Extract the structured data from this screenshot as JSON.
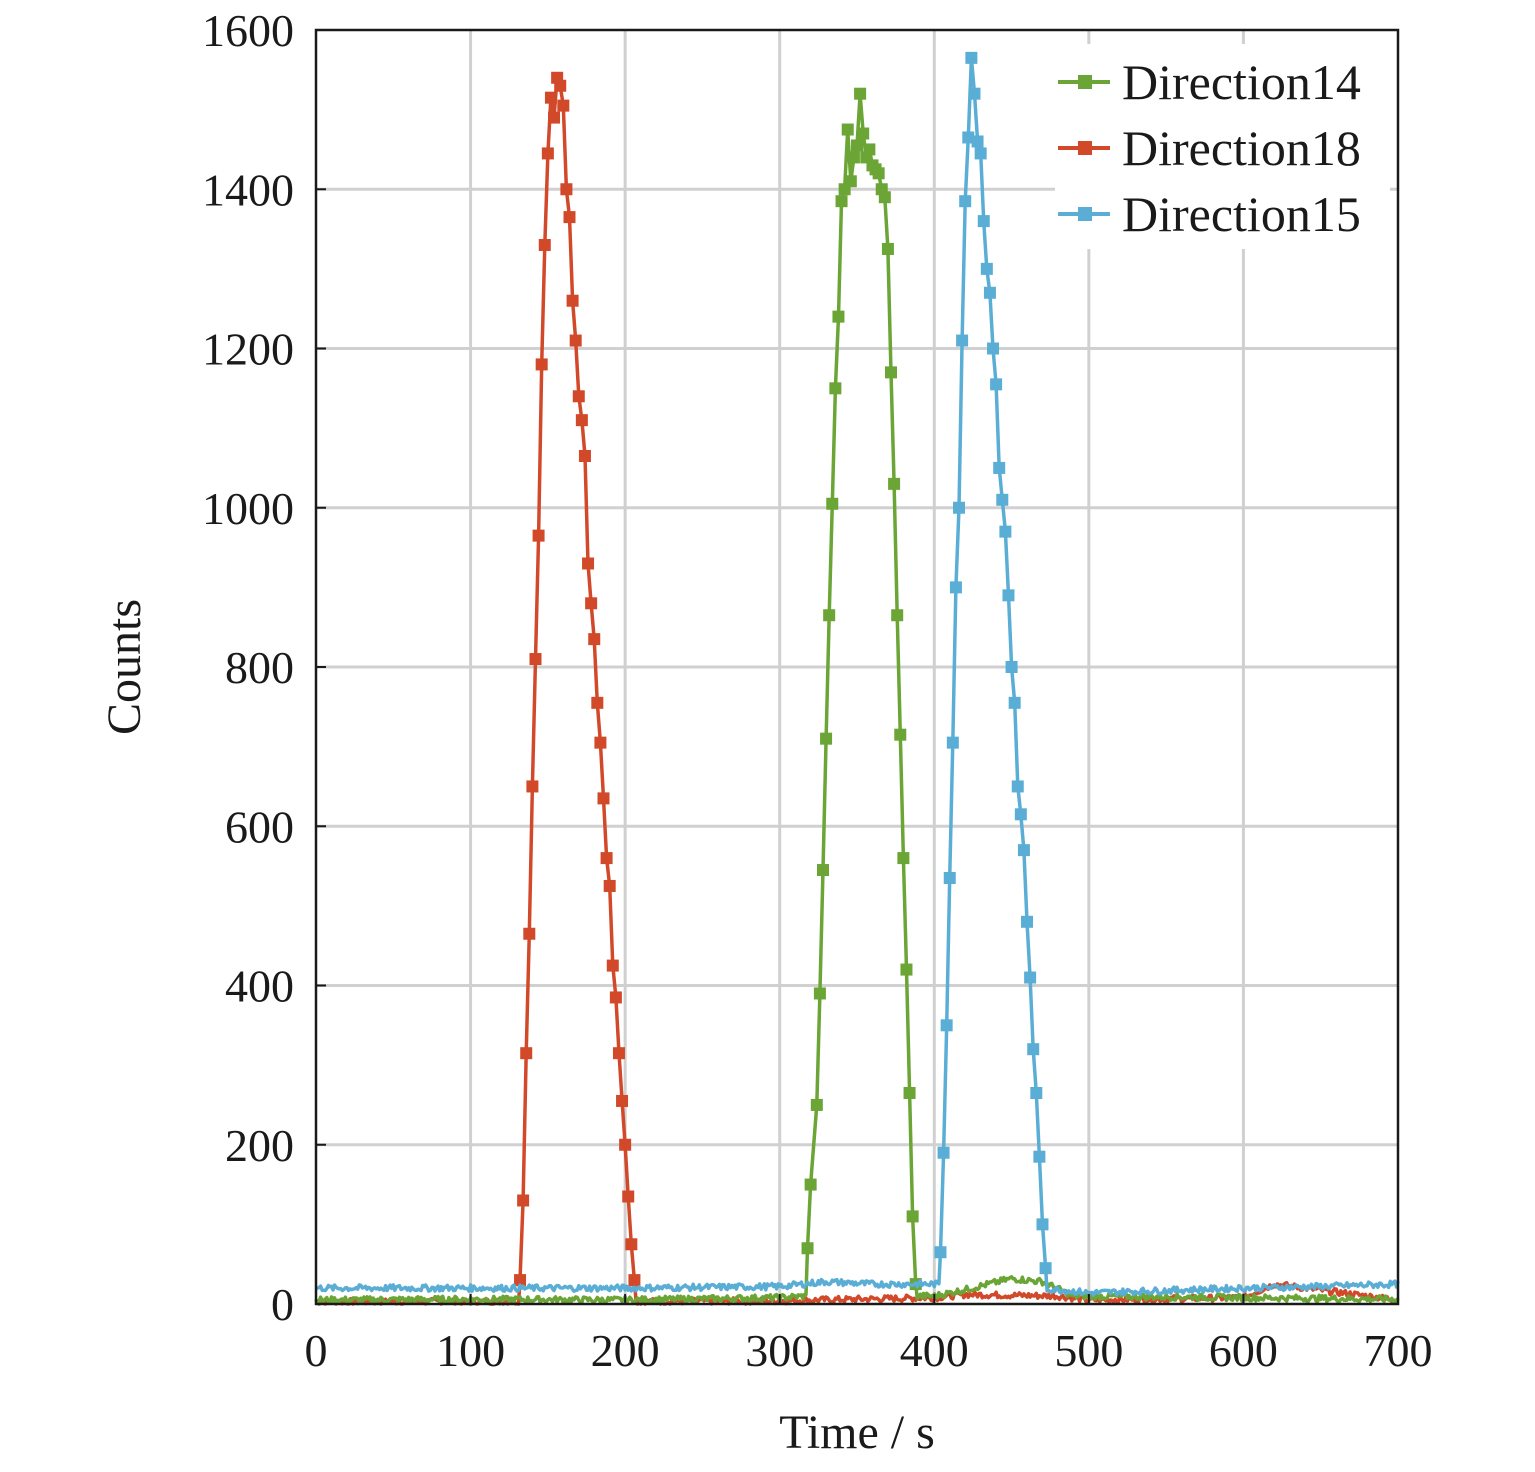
{
  "chart_data": {
    "type": "line",
    "title": "",
    "xlabel": "Time / s",
    "ylabel": "Counts",
    "xlim": [
      0,
      700
    ],
    "ylim": [
      0,
      1600
    ],
    "xticks": [
      "0",
      "100",
      "200",
      "300",
      "400",
      "500",
      "600",
      "700"
    ],
    "yticks": [
      "0",
      "200",
      "400",
      "600",
      "800",
      "1000",
      "1200",
      "1400",
      "1600"
    ],
    "grid": true,
    "legend_position": "top-right",
    "series": [
      {
        "name": "Direction14",
        "color": "#6aa535",
        "background": [
          [
            0,
            5
          ],
          [
            100,
            6
          ],
          [
            200,
            5
          ],
          [
            300,
            8
          ],
          [
            318,
            10
          ],
          [
            400,
            10
          ],
          [
            420,
            18
          ],
          [
            450,
            32
          ],
          [
            470,
            28
          ],
          [
            490,
            10
          ],
          [
            600,
            8
          ],
          [
            700,
            6
          ]
        ],
        "peak_points": [
          [
            318,
            70
          ],
          [
            320,
            150
          ],
          [
            324,
            250
          ],
          [
            326,
            390
          ],
          [
            328,
            545
          ],
          [
            330,
            710
          ],
          [
            332,
            865
          ],
          [
            334,
            1005
          ],
          [
            336,
            1150
          ],
          [
            338,
            1240
          ],
          [
            340,
            1385
          ],
          [
            342,
            1400
          ],
          [
            344,
            1475
          ],
          [
            346,
            1410
          ],
          [
            348,
            1440
          ],
          [
            350,
            1455
          ],
          [
            352,
            1520
          ],
          [
            354,
            1470
          ],
          [
            356,
            1440
          ],
          [
            358,
            1450
          ],
          [
            360,
            1430
          ],
          [
            362,
            1425
          ],
          [
            364,
            1420
          ],
          [
            366,
            1400
          ],
          [
            368,
            1390
          ],
          [
            370,
            1325
          ],
          [
            372,
            1170
          ],
          [
            374,
            1030
          ],
          [
            376,
            865
          ],
          [
            378,
            715
          ],
          [
            380,
            560
          ],
          [
            382,
            420
          ],
          [
            384,
            265
          ],
          [
            386,
            110
          ],
          [
            388,
            25
          ]
        ]
      },
      {
        "name": "Direction18",
        "color": "#d2492a",
        "background": [
          [
            0,
            3
          ],
          [
            100,
            3
          ],
          [
            200,
            3
          ],
          [
            300,
            4
          ],
          [
            400,
            8
          ],
          [
            420,
            12
          ],
          [
            480,
            10
          ],
          [
            500,
            5
          ],
          [
            600,
            8
          ],
          [
            620,
            25
          ],
          [
            640,
            20
          ],
          [
            700,
            5
          ]
        ],
        "peak_points": [
          [
            132,
            30
          ],
          [
            134,
            130
          ],
          [
            136,
            315
          ],
          [
            138,
            465
          ],
          [
            140,
            650
          ],
          [
            142,
            810
          ],
          [
            144,
            965
          ],
          [
            146,
            1180
          ],
          [
            148,
            1330
          ],
          [
            150,
            1445
          ],
          [
            152,
            1515
          ],
          [
            154,
            1490
          ],
          [
            156,
            1540
          ],
          [
            158,
            1530
          ],
          [
            160,
            1505
          ],
          [
            162,
            1400
          ],
          [
            164,
            1365
          ],
          [
            166,
            1260
          ],
          [
            168,
            1210
          ],
          [
            170,
            1140
          ],
          [
            172,
            1110
          ],
          [
            174,
            1065
          ],
          [
            176,
            930
          ],
          [
            178,
            880
          ],
          [
            180,
            835
          ],
          [
            182,
            755
          ],
          [
            184,
            705
          ],
          [
            186,
            635
          ],
          [
            188,
            560
          ],
          [
            190,
            525
          ],
          [
            192,
            425
          ],
          [
            194,
            385
          ],
          [
            196,
            315
          ],
          [
            198,
            255
          ],
          [
            200,
            200
          ],
          [
            202,
            135
          ],
          [
            204,
            75
          ],
          [
            206,
            30
          ]
        ]
      },
      {
        "name": "Direction15",
        "color": "#5aaed6",
        "background": [
          [
            0,
            20
          ],
          [
            100,
            20
          ],
          [
            200,
            20
          ],
          [
            300,
            22
          ],
          [
            330,
            28
          ],
          [
            360,
            25
          ],
          [
            400,
            25
          ],
          [
            480,
            18
          ],
          [
            500,
            14
          ],
          [
            600,
            20
          ],
          [
            650,
            22
          ],
          [
            700,
            25
          ]
        ],
        "peak_points": [
          [
            404,
            65
          ],
          [
            406,
            190
          ],
          [
            408,
            350
          ],
          [
            410,
            535
          ],
          [
            412,
            705
          ],
          [
            414,
            900
          ],
          [
            416,
            1000
          ],
          [
            418,
            1210
          ],
          [
            420,
            1385
          ],
          [
            422,
            1465
          ],
          [
            424,
            1565
          ],
          [
            426,
            1520
          ],
          [
            428,
            1460
          ],
          [
            430,
            1445
          ],
          [
            432,
            1360
          ],
          [
            434,
            1300
          ],
          [
            436,
            1270
          ],
          [
            438,
            1200
          ],
          [
            440,
            1155
          ],
          [
            442,
            1050
          ],
          [
            444,
            1010
          ],
          [
            446,
            970
          ],
          [
            448,
            890
          ],
          [
            450,
            800
          ],
          [
            452,
            755
          ],
          [
            454,
            650
          ],
          [
            456,
            615
          ],
          [
            458,
            570
          ],
          [
            460,
            480
          ],
          [
            462,
            410
          ],
          [
            464,
            320
          ],
          [
            466,
            265
          ],
          [
            468,
            185
          ],
          [
            470,
            100
          ],
          [
            472,
            45
          ]
        ]
      }
    ]
  }
}
